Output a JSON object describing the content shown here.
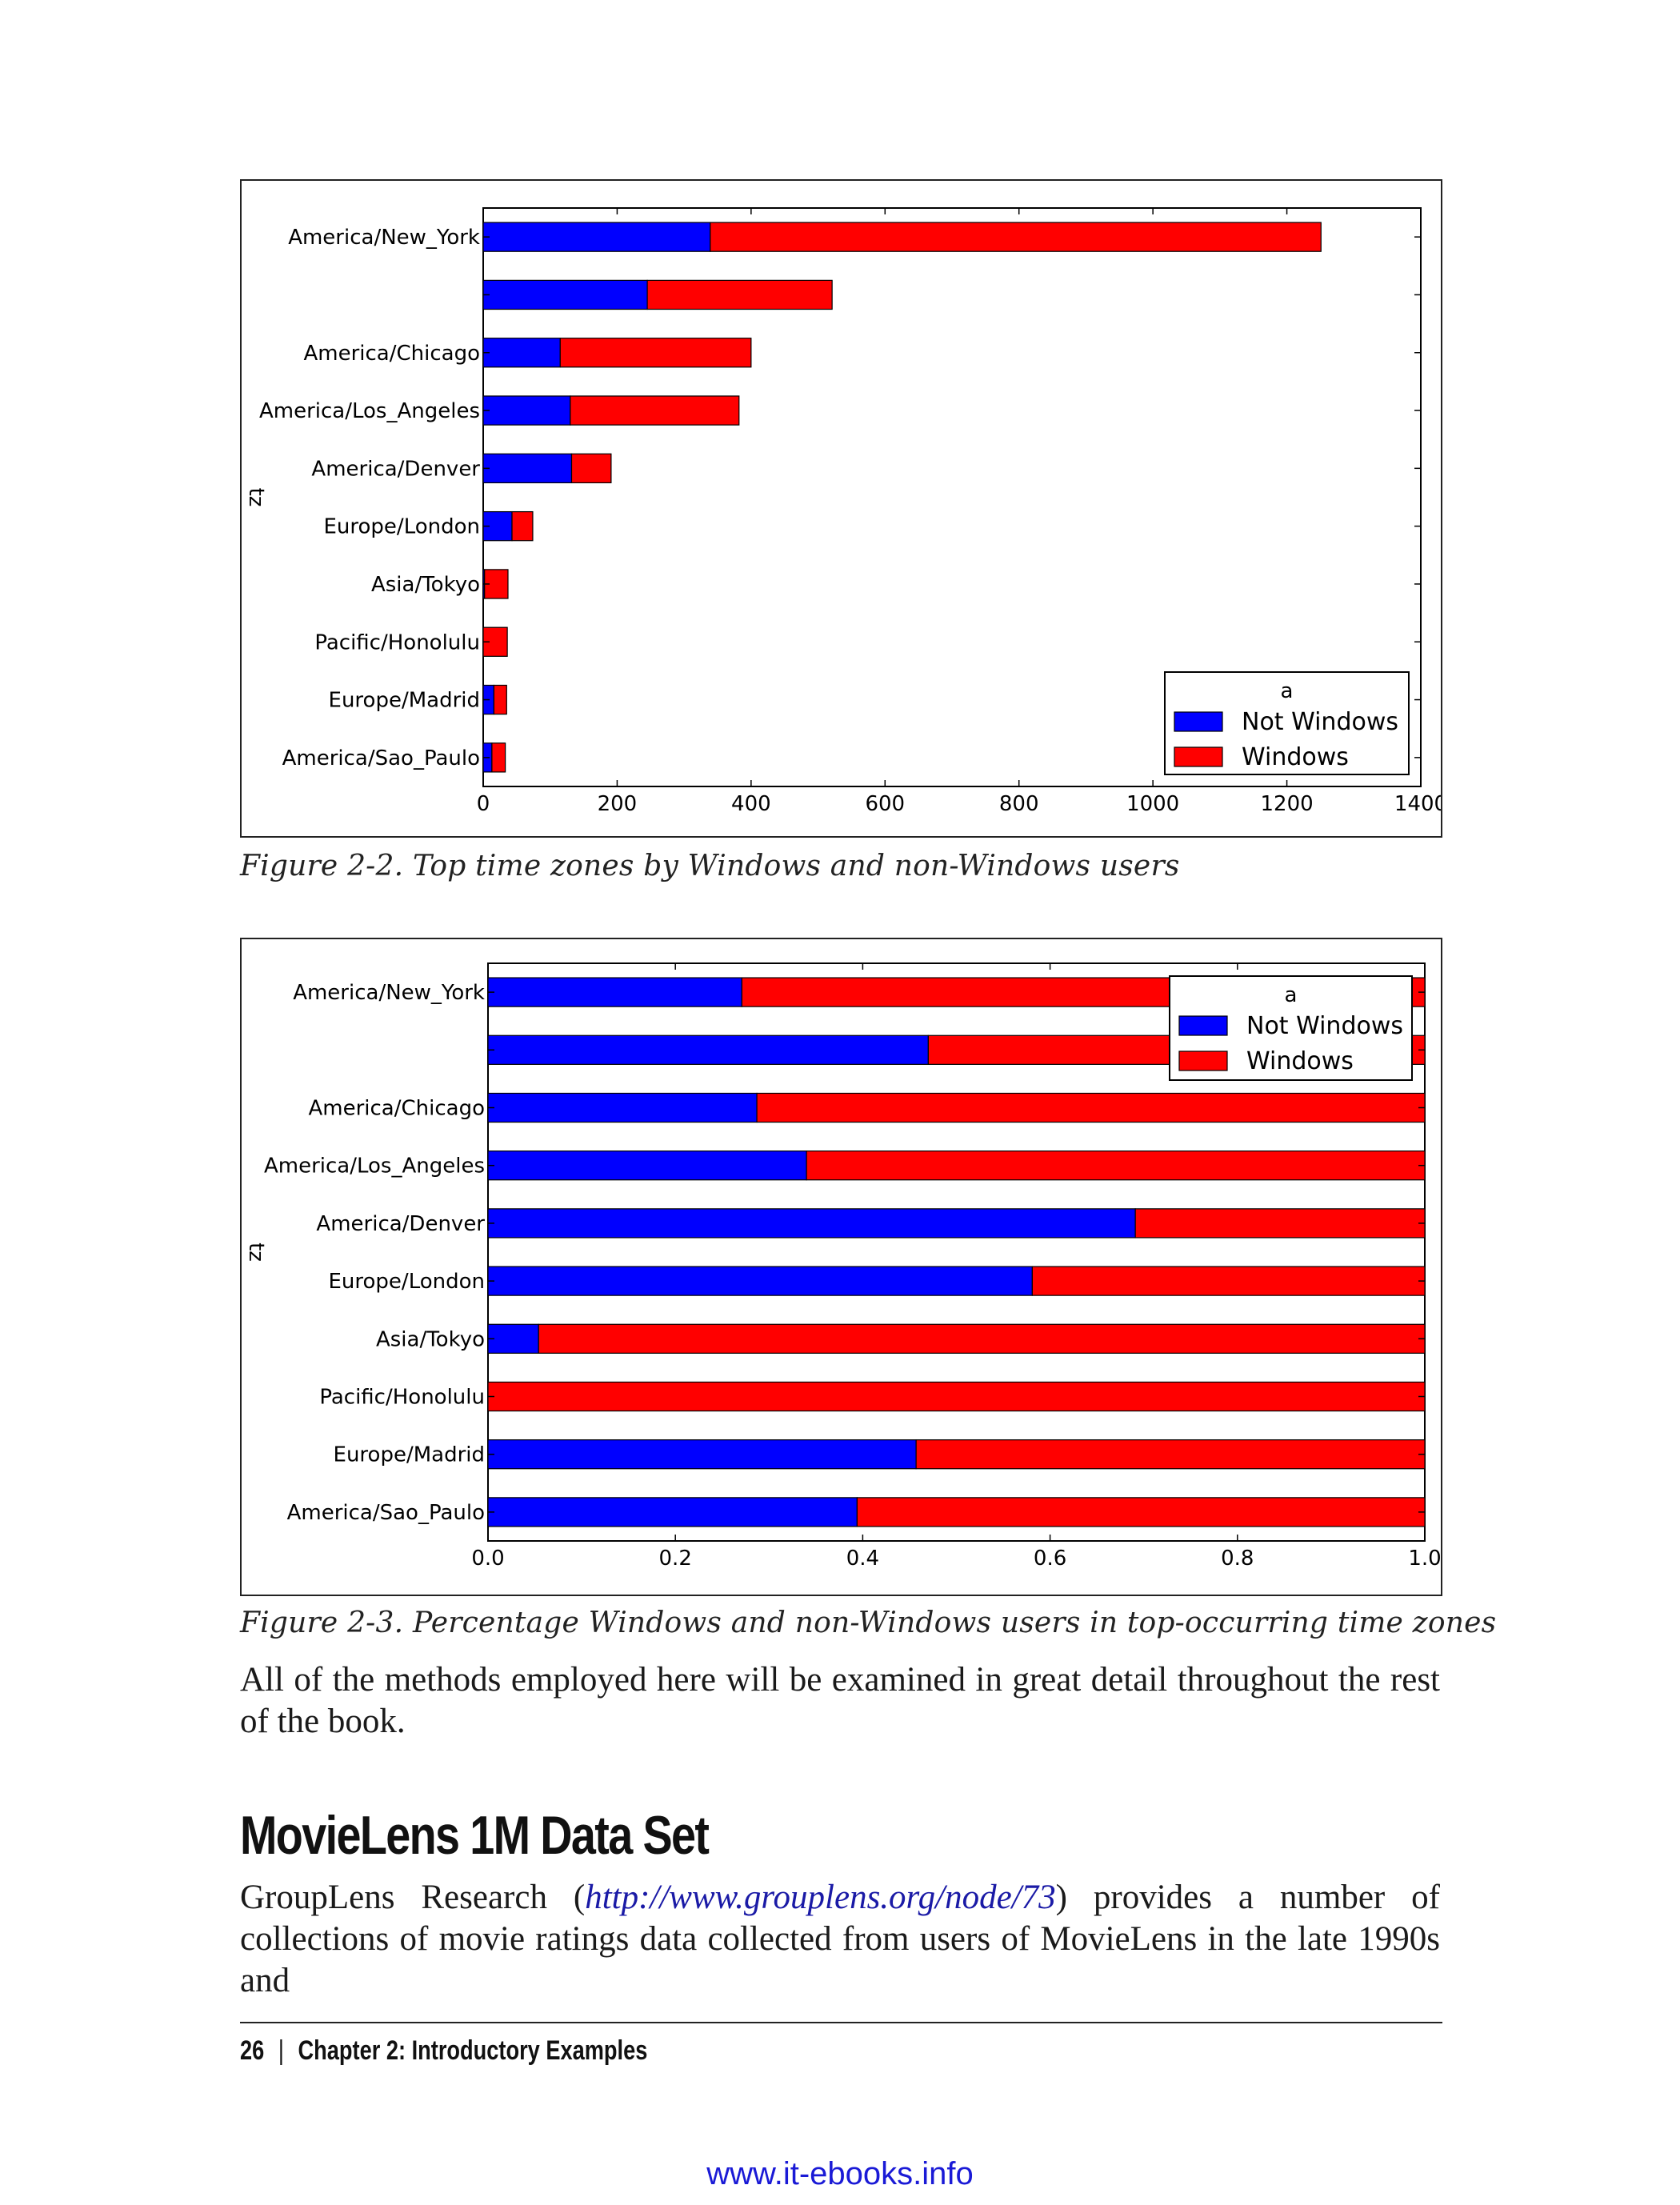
{
  "figures": [
    {
      "caption": "Figure 2-2. Top time zones by Windows and non-Windows users"
    },
    {
      "caption": "Figure 2-3. Percentage Windows and non-Windows users in top-occurring time zones"
    }
  ],
  "paragraph_1": "All of the methods employed here will be examined in great detail throughout the rest of the book.",
  "section_title": "MovieLens 1M Data Set",
  "paragraph_2": {
    "before_link": "GroupLens Research (",
    "link": "http://www.grouplens.org/node/73",
    "after_link": ") provides a number of collections of movie ratings data collected from users of MovieLens in the late 1990s and"
  },
  "footer": {
    "page_number": "26",
    "separator": "|",
    "chapter": "Chapter 2:  Introductory Examples"
  },
  "watermark": "www.it-ebooks.info",
  "colors": {
    "not_windows": "#0000ff",
    "windows": "#ff0000"
  },
  "chart_data": [
    {
      "type": "bar",
      "orientation": "horizontal",
      "stacked": true,
      "ylabel": "tz",
      "legend_title": "a",
      "legend_position": "bottom-right",
      "categories": [
        "America/New_York",
        "",
        "America/Chicago",
        "America/Los_Angeles",
        "America/Denver",
        "Europe/London",
        "Asia/Tokyo",
        "Pacific/Honolulu",
        "Europe/Madrid",
        "America/Sao_Paulo"
      ],
      "series": [
        {
          "name": "Not Windows",
          "values": [
            339,
            245,
            115,
            130,
            132,
            43,
            2,
            0,
            16,
            13
          ]
        },
        {
          "name": "Windows",
          "values": [
            912,
            276,
            285,
            252,
            59,
            31,
            35,
            36,
            19,
            20
          ]
        }
      ],
      "xlim": [
        0,
        1400
      ],
      "xticks": [
        "0",
        "200",
        "400",
        "600",
        "800",
        "1000",
        "1200",
        "1400"
      ]
    },
    {
      "type": "bar",
      "orientation": "horizontal",
      "stacked": true,
      "normalized": true,
      "ylabel": "tz",
      "legend_title": "a",
      "legend_position": "top-right",
      "categories": [
        "America/New_York",
        "",
        "America/Chicago",
        "America/Los_Angeles",
        "America/Denver",
        "Europe/London",
        "Asia/Tokyo",
        "Pacific/Honolulu",
        "Europe/Madrid",
        "America/Sao_Paulo"
      ],
      "series": [
        {
          "name": "Not Windows",
          "values": [
            0.271,
            0.47,
            0.287,
            0.34,
            0.691,
            0.581,
            0.054,
            0.0,
            0.457,
            0.394
          ]
        },
        {
          "name": "Windows",
          "values": [
            0.729,
            0.53,
            0.713,
            0.66,
            0.309,
            0.419,
            0.946,
            1.0,
            0.543,
            0.606
          ]
        }
      ],
      "xlim": [
        0,
        1
      ],
      "xticks": [
        "0.0",
        "0.2",
        "0.4",
        "0.6",
        "0.8",
        "1.0"
      ]
    }
  ]
}
